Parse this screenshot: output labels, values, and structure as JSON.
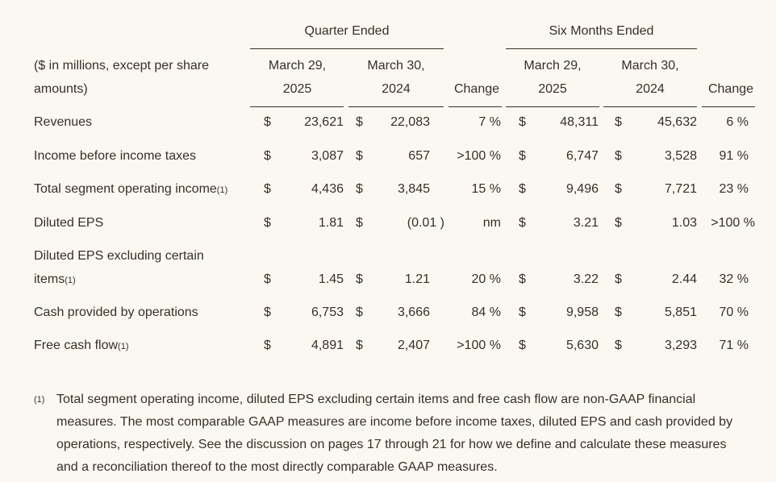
{
  "header": {
    "quarter_ended": "Quarter Ended",
    "six_months_ended": "Six Months Ended",
    "units_line1": "($ in millions, except per share",
    "units_line2": "amounts)",
    "q_col1_line1": "March 29,",
    "q_col1_line2": "2025",
    "q_col2_line1": "March 30,",
    "q_col2_line2": "2024",
    "q_change": "Change",
    "s_col1_line1": "March 29,",
    "s_col1_line2": "2025",
    "s_col2_line1": "March 30,",
    "s_col2_line2": "2024",
    "s_change": "Change"
  },
  "rows": [
    {
      "label": "Revenues",
      "label_sup": "",
      "q1_sym": "$",
      "q1": "23,621",
      "q2_sym": "$",
      "q2": "22,083",
      "qc": "7 %",
      "s1_sym": "$",
      "s1": "48,311",
      "s2_sym": "$",
      "s2": "45,632",
      "sc": "6 %"
    },
    {
      "label": "Income before income taxes",
      "label_sup": "",
      "q1_sym": "$",
      "q1": "3,087",
      "q2_sym": "$",
      "q2": "657",
      "qc": ">100 %",
      "s1_sym": "$",
      "s1": "6,747",
      "s2_sym": "$",
      "s2": "3,528",
      "sc": "91 %"
    },
    {
      "label": "Total segment operating income",
      "label_sup": "(1)",
      "q1_sym": "$",
      "q1": "4,436",
      "q2_sym": "$",
      "q2": "3,845",
      "qc": "15 %",
      "s1_sym": "$",
      "s1": "9,496",
      "s2_sym": "$",
      "s2": "7,721",
      "sc": "23 %"
    },
    {
      "label": "Diluted EPS",
      "label_sup": "",
      "q1_sym": "$",
      "q1": "1.81",
      "q2_sym": "$",
      "q2": "(0.01 )",
      "qc": "nm",
      "s1_sym": "$",
      "s1": "3.21",
      "s2_sym": "$",
      "s2": "1.03",
      "sc": ">100 %"
    },
    {
      "label_line1": "Diluted EPS excluding certain",
      "label": "items",
      "label_sup": "(1)",
      "q1_sym": "$",
      "q1": "1.45",
      "q2_sym": "$",
      "q2": "1.21",
      "qc": "20 %",
      "s1_sym": "$",
      "s1": "3.22",
      "s2_sym": "$",
      "s2": "2.44",
      "sc": "32 %"
    },
    {
      "label": "Cash provided by operations",
      "label_sup": "",
      "q1_sym": "$",
      "q1": "6,753",
      "q2_sym": "$",
      "q2": "3,666",
      "qc": "84 %",
      "s1_sym": "$",
      "s1": "9,958",
      "s2_sym": "$",
      "s2": "5,851",
      "sc": "70 %"
    },
    {
      "label": "Free cash flow",
      "label_sup": "(1)",
      "q1_sym": "$",
      "q1": "4,891",
      "q2_sym": "$",
      "q2": "2,407",
      "qc": ">100 %",
      "s1_sym": "$",
      "s1": "5,630",
      "s2_sym": "$",
      "s2": "3,293",
      "sc": "71 %"
    }
  ],
  "footnote": {
    "marker": "(1)",
    "line1": "Total segment operating income, diluted EPS excluding certain items and free cash flow are non-GAAP financial",
    "line2": "measures. The most comparable GAAP measures are income before income taxes, diluted EPS and cash provided by",
    "line3": "operations, respectively. See the discussion on pages 17 through 21 for how we define and calculate these measures",
    "line4": "and a reconciliation thereof to the most directly comparable GAAP measures."
  }
}
